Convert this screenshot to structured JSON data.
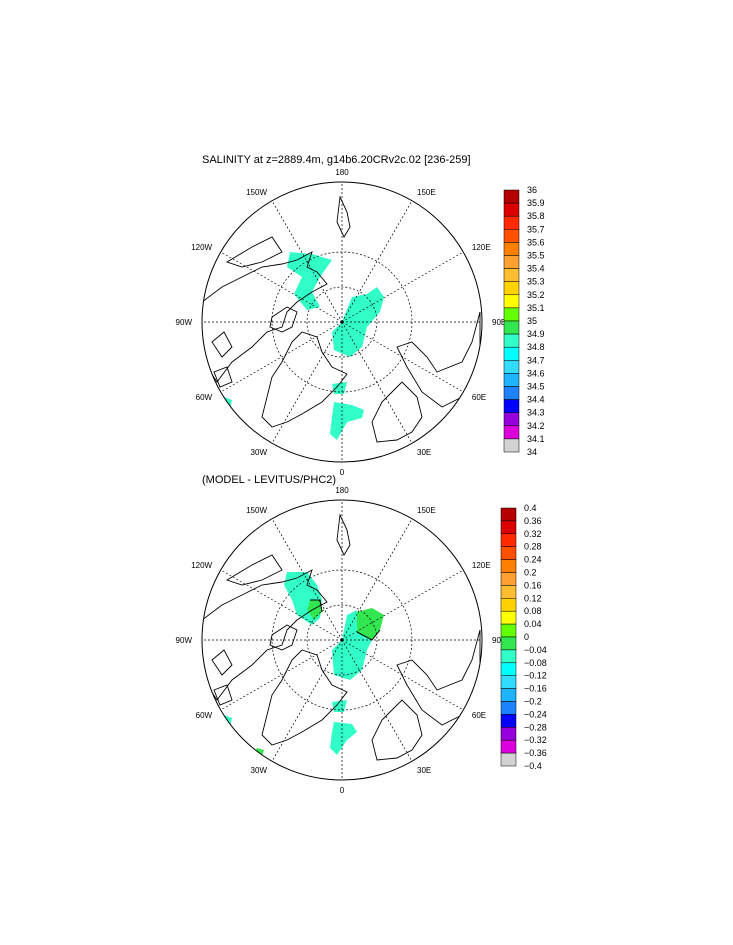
{
  "chart_data": [
    {
      "type": "heatmap",
      "projection": "north polar stereographic",
      "title": "SALINITY at z=2889.4m, g14b6.20CRv2c.02 [236-259]",
      "lon_labels": [
        "180",
        "150E",
        "120E",
        "90E",
        "60E",
        "30E",
        "0",
        "30W",
        "60W",
        "90W",
        "120W",
        "150W"
      ],
      "colorbar": {
        "levels": [
          "36",
          "35.9",
          "35.8",
          "35.7",
          "35.6",
          "35.5",
          "35.4",
          "35.3",
          "35.2",
          "35.1",
          "35",
          "34.9",
          "34.8",
          "34.7",
          "34.6",
          "34.5",
          "34.4",
          "34.3",
          "34.2",
          "34.1",
          "34"
        ],
        "colors": [
          "#b40000",
          "#dc0000",
          "#ff2a00",
          "#ff5000",
          "#ff8000",
          "#ffa032",
          "#ffbe32",
          "#ffd200",
          "#ffff00",
          "#64ff00",
          "#32e650",
          "#32ffc8",
          "#00ffff",
          "#32dcff",
          "#1eb4ff",
          "#1e82ff",
          "#0000ff",
          "#9600dc",
          "#dc00dc",
          "#d2d2d2",
          "#646464"
        ]
      }
    },
    {
      "type": "heatmap",
      "projection": "north polar stereographic",
      "title": "(MODEL - LEVITUS/PHC2)",
      "lon_labels": [
        "180",
        "150E",
        "120E",
        "90E",
        "60E",
        "30E",
        "0",
        "30W",
        "60W",
        "90W",
        "120W",
        "150W"
      ],
      "colorbar": {
        "levels": [
          "0.4",
          "0.36",
          "0.32",
          "0.28",
          "0.24",
          "0.2",
          "0.16",
          "0.12",
          "0.08",
          "0.04",
          "0",
          "−0.04",
          "−0.08",
          "−0.12",
          "−0.16",
          "−0.2",
          "−0.24",
          "−0.28",
          "−0.32",
          "−0.36",
          "−0.4"
        ],
        "colors": [
          "#b40000",
          "#dc0000",
          "#ff2a00",
          "#ff5000",
          "#ff8000",
          "#ffa032",
          "#ffbe32",
          "#ffd200",
          "#ffff00",
          "#64ff00",
          "#32e650",
          "#32ffc8",
          "#00ffff",
          "#32dcff",
          "#1eb4ff",
          "#1e82ff",
          "#0000ff",
          "#9600dc",
          "#dc00dc",
          "#d2d2d2",
          "#646464"
        ]
      }
    }
  ]
}
